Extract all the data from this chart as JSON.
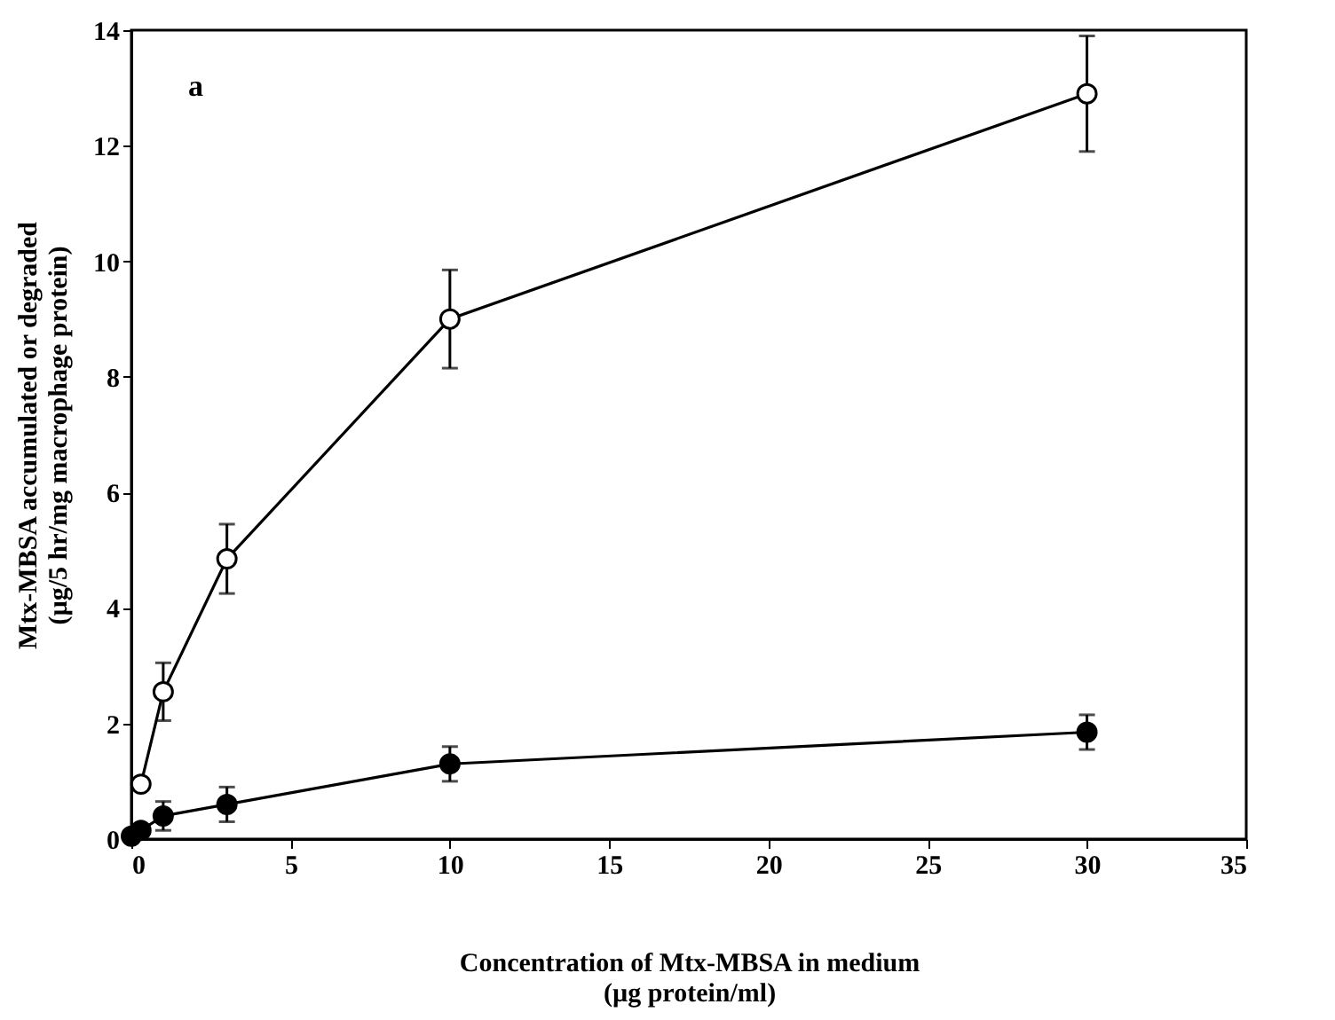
{
  "chart_data": {
    "type": "line",
    "xlabel": "Concentration of Mtx-MBSA in medium\n(µg protein/ml)",
    "ylabel": "Mtx-MBSA accumulated or degraded\n(µg/5 hr/mg macrophage protein)",
    "annotations": [
      "a"
    ],
    "xlim": [
      0,
      35
    ],
    "xticks": [
      0,
      5,
      10,
      15,
      20,
      25,
      30,
      35
    ],
    "ylim": [
      0,
      14
    ],
    "yticks": [
      0,
      2,
      4,
      6,
      8,
      10,
      12,
      14
    ],
    "grid": false,
    "marker": "circle",
    "line_style": "solid",
    "series": [
      {
        "color": "#000000",
        "x": [
          0.3,
          1,
          3,
          10,
          30
        ],
        "values": [
          0.95,
          2.55,
          4.85,
          9.0,
          12.9
        ],
        "errors": [
          null,
          0.5,
          0.6,
          0.85,
          1.0
        ]
      },
      {
        "color": "#000000",
        "x": [
          0,
          0.3,
          1,
          3,
          10,
          30
        ],
        "values": [
          0.05,
          0.15,
          0.4,
          0.6,
          1.3,
          1.85
        ],
        "errors": [
          null,
          null,
          0.25,
          0.3,
          0.3,
          0.3
        ]
      }
    ]
  }
}
